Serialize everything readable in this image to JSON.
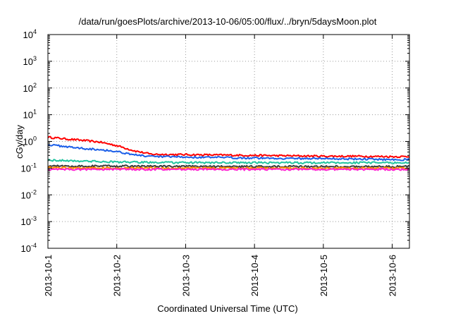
{
  "chart_data": {
    "type": "line",
    "title": "/data/run/goesPlots/archive/2013-10-06/05:00/flux/../bryn/5daysMoon.plot",
    "xlabel": "Coordinated Universal Time (UTC)",
    "ylabel": "cGy/day",
    "y_scale": "log",
    "ylim": [
      0.0001,
      10000
    ],
    "y_ticks": [
      {
        "value": 0.0001,
        "base": "10",
        "exp": "-4"
      },
      {
        "value": 0.001,
        "base": "10",
        "exp": "-3"
      },
      {
        "value": 0.01,
        "base": "10",
        "exp": "-2"
      },
      {
        "value": 0.1,
        "base": "10",
        "exp": "-1"
      },
      {
        "value": 1,
        "base": "10",
        "exp": "0"
      },
      {
        "value": 10,
        "base": "10",
        "exp": "1"
      },
      {
        "value": 100,
        "base": "10",
        "exp": "2"
      },
      {
        "value": 1000,
        "base": "10",
        "exp": "3"
      },
      {
        "value": 10000,
        "base": "10",
        "exp": "4"
      }
    ],
    "xlim": [
      "2013-10-01",
      "2013-10-06 06:00"
    ],
    "x_ticks": [
      "2013-10-1",
      "2013-10-2",
      "2013-10-3",
      "2013-10-4",
      "2013-10-5",
      "2013-10-6"
    ],
    "grid": true,
    "series": [
      {
        "color": "#ff0000",
        "x": [
          "2013-10-01 00:00",
          "2013-10-01 06:00",
          "2013-10-01 12:00",
          "2013-10-01 18:00",
          "2013-10-02 00:00",
          "2013-10-02 06:00",
          "2013-10-02 12:00",
          "2013-10-03 00:00",
          "2013-10-03 12:00",
          "2013-10-04 00:00",
          "2013-10-04 12:00",
          "2013-10-05 00:00",
          "2013-10-05 12:00",
          "2013-10-06 00:00",
          "2013-10-06 06:00"
        ],
        "values": [
          1.45,
          1.25,
          1.1,
          0.95,
          0.7,
          0.45,
          0.33,
          0.32,
          0.31,
          0.3,
          0.29,
          0.28,
          0.28,
          0.27,
          0.27
        ]
      },
      {
        "color": "#1c5fe8",
        "x": [
          "2013-10-01 00:00",
          "2013-10-01 06:00",
          "2013-10-01 12:00",
          "2013-10-01 18:00",
          "2013-10-02 00:00",
          "2013-10-02 06:00",
          "2013-10-02 12:00",
          "2013-10-03 00:00",
          "2013-10-03 12:00",
          "2013-10-04 00:00",
          "2013-10-04 12:00",
          "2013-10-05 00:00",
          "2013-10-05 12:00",
          "2013-10-06 00:00",
          "2013-10-06 06:00"
        ],
        "values": [
          0.75,
          0.65,
          0.55,
          0.5,
          0.42,
          0.32,
          0.27,
          0.26,
          0.25,
          0.24,
          0.23,
          0.23,
          0.22,
          0.21,
          0.21
        ]
      },
      {
        "color": "#22c4a0",
        "x": [
          "2013-10-01 00:00",
          "2013-10-02 00:00",
          "2013-10-03 00:00",
          "2013-10-04 00:00",
          "2013-10-05 00:00",
          "2013-10-06 00:00",
          "2013-10-06 06:00"
        ],
        "values": [
          0.2,
          0.17,
          0.16,
          0.16,
          0.16,
          0.16,
          0.16
        ]
      },
      {
        "color": "#3a3a3a",
        "x": [
          "2013-10-01 00:00",
          "2013-10-02 00:00",
          "2013-10-03 00:00",
          "2013-10-04 00:00",
          "2013-10-05 00:00",
          "2013-10-06 00:00",
          "2013-10-06 06:00"
        ],
        "values": [
          0.12,
          0.12,
          0.115,
          0.115,
          0.115,
          0.115,
          0.115
        ]
      },
      {
        "color": "#ff8c00",
        "x": [
          "2013-10-01 00:00",
          "2013-10-02 00:00",
          "2013-10-03 00:00",
          "2013-10-04 00:00",
          "2013-10-05 00:00",
          "2013-10-06 00:00",
          "2013-10-06 06:00"
        ],
        "values": [
          0.105,
          0.1,
          0.1,
          0.1,
          0.1,
          0.1,
          0.1
        ]
      },
      {
        "color": "#ff1fd0",
        "x": [
          "2013-10-01 00:00",
          "2013-10-02 00:00",
          "2013-10-03 00:00",
          "2013-10-04 00:00",
          "2013-10-05 00:00",
          "2013-10-06 00:00",
          "2013-10-06 06:00"
        ],
        "values": [
          0.09,
          0.09,
          0.09,
          0.09,
          0.09,
          0.09,
          0.09
        ]
      }
    ]
  }
}
